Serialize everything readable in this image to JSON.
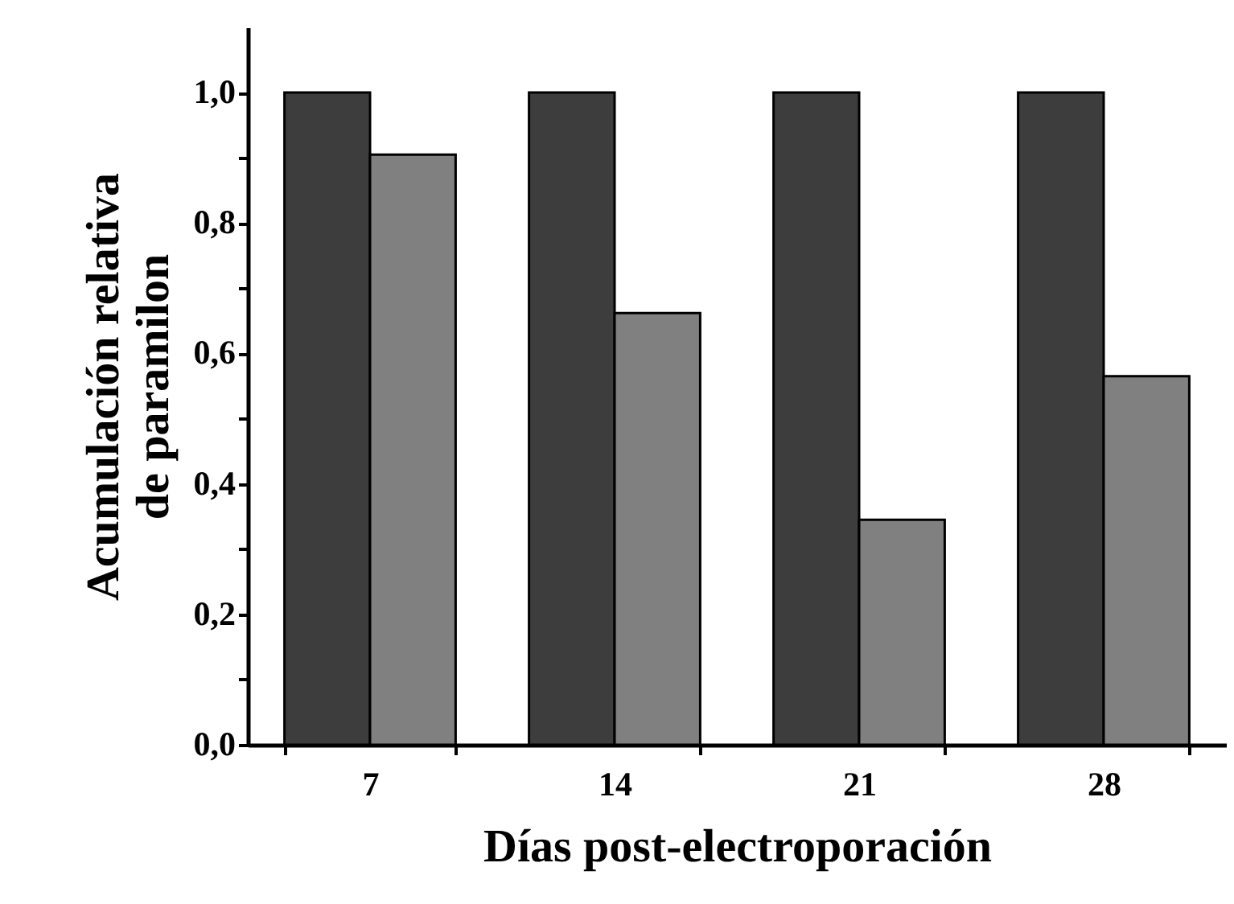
{
  "chart_data": {
    "type": "bar",
    "xlabel": "Días post-electroporación",
    "ylabel": "Acumulación relativa\nde paramilon",
    "categories": [
      "7",
      "14",
      "21",
      "28"
    ],
    "series": [
      {
        "color": "#3d3d3d",
        "values": [
          1.0,
          1.0,
          1.0,
          1.0
        ]
      },
      {
        "color": "#808080",
        "values": [
          0.905,
          0.662,
          0.345,
          0.565
        ]
      }
    ],
    "ylim": [
      0,
      1.1
    ],
    "yticks": [
      {
        "value": 0,
        "label": "0,0"
      },
      {
        "value": 0.1,
        "label": null
      },
      {
        "value": 0.2,
        "label": "0,2"
      },
      {
        "value": 0.3,
        "label": null
      },
      {
        "value": 0.4,
        "label": "0,4"
      },
      {
        "value": 0.5,
        "label": null
      },
      {
        "value": 0.6,
        "label": "0,6"
      },
      {
        "value": 0.7,
        "label": null
      },
      {
        "value": 0.8,
        "label": "0,8"
      },
      {
        "value": 0.9,
        "label": null
      },
      {
        "value": 1.0,
        "label": "1,0"
      }
    ],
    "grid": false
  }
}
